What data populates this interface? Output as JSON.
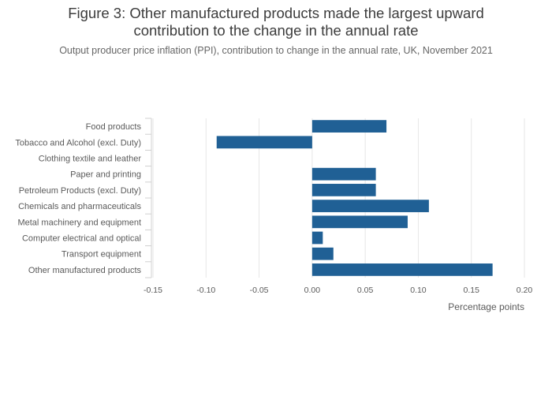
{
  "title_line1": "Figure 3: Other manufactured products made the largest upward",
  "title_line2": "contribution to the change in the annual rate",
  "subtitle": "Output producer price inflation (PPI), contribution to change in the annual rate, UK, November 2021",
  "chart_data": {
    "type": "bar",
    "orientation": "horizontal",
    "categories": [
      "Food products",
      "Tobacco and Alcohol (excl. Duty)",
      "Clothing textile and leather",
      "Paper and printing",
      "Petroleum Products (excl. Duty)",
      "Chemicals and pharmaceuticals",
      "Metal machinery and equipment",
      "Computer electrical and optical",
      "Transport equipment",
      "Other manufactured products"
    ],
    "values": [
      0.07,
      -0.09,
      0.0,
      0.06,
      0.06,
      0.11,
      0.09,
      0.01,
      0.02,
      0.17
    ],
    "xlabel": "Percentage points",
    "xlim": [
      -0.15,
      0.2
    ],
    "xticks": [
      "-0.15",
      "-0.10",
      "-0.05",
      "0.00",
      "0.05",
      "0.10",
      "0.15",
      "0.20"
    ],
    "grid": true,
    "bar_color": "#206095"
  }
}
